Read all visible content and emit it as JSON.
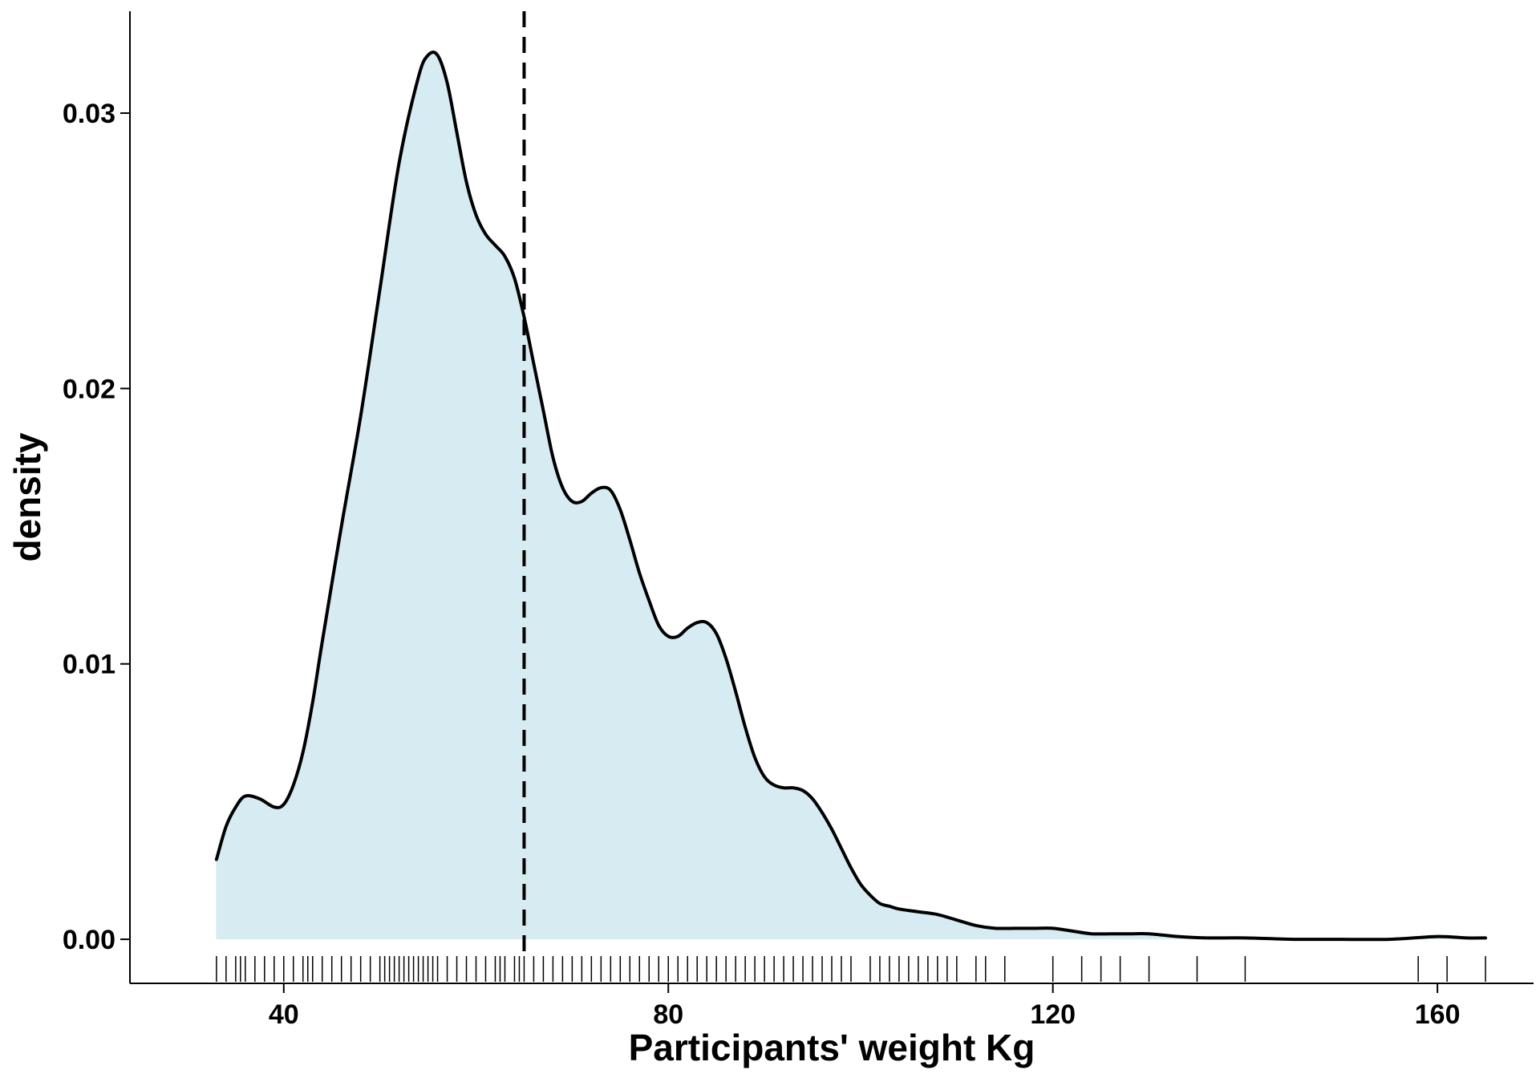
{
  "chart_data": {
    "type": "area",
    "title": "",
    "xlabel": "Participants' weight Kg",
    "ylabel": "density",
    "xlim": [
      24,
      170
    ],
    "ylim": [
      -0.0016,
      0.0337
    ],
    "x_ticks": [
      40,
      80,
      120,
      160
    ],
    "y_ticks": [
      0.0,
      0.01,
      0.02,
      0.03
    ],
    "x_tick_labels": [
      "40",
      "80",
      "120",
      "160"
    ],
    "y_tick_labels": [
      "0.00",
      "0.01",
      "0.02",
      "0.03"
    ],
    "grid": false,
    "legend": "none",
    "fill_color": "#d6ebf2",
    "line_color": "#000000",
    "mean_line_x": 65.0,
    "series": [
      {
        "x": [
          33,
          34,
          35,
          36,
          37.5,
          39,
          40,
          41,
          42,
          43,
          44,
          46,
          48,
          50,
          52,
          54,
          55,
          56,
          57,
          58,
          59,
          60,
          61,
          62,
          63,
          64,
          65,
          66,
          67,
          68,
          69,
          70,
          71,
          72,
          73,
          74,
          75,
          76,
          77,
          78,
          79,
          80,
          81,
          82,
          83,
          84,
          85,
          86,
          87,
          88,
          89,
          90,
          91,
          92,
          93,
          94,
          95,
          96,
          97,
          98,
          99,
          100,
          101,
          102,
          103,
          104,
          106,
          108,
          110,
          112,
          114,
          116,
          118,
          120,
          122,
          124,
          126,
          128,
          130,
          133,
          136,
          140,
          145,
          150,
          155,
          160,
          163,
          165
        ],
        "y": [
          0.0029,
          0.0041,
          0.0048,
          0.0052,
          0.0051,
          0.0048,
          0.0049,
          0.0056,
          0.0068,
          0.0086,
          0.0108,
          0.015,
          0.019,
          0.0236,
          0.0282,
          0.0313,
          0.0321,
          0.0321,
          0.0311,
          0.0293,
          0.0275,
          0.0263,
          0.0256,
          0.0252,
          0.0248,
          0.024,
          0.0226,
          0.0209,
          0.0192,
          0.0175,
          0.0164,
          0.0159,
          0.0159,
          0.0162,
          0.0164,
          0.0163,
          0.0156,
          0.0145,
          0.0133,
          0.0123,
          0.0114,
          0.011,
          0.011,
          0.0113,
          0.0115,
          0.0115,
          0.0111,
          0.0102,
          0.009,
          0.0077,
          0.0066,
          0.0059,
          0.0056,
          0.0055,
          0.0055,
          0.0054,
          0.0051,
          0.0046,
          0.004,
          0.0033,
          0.0026,
          0.002,
          0.0016,
          0.0013,
          0.0012,
          0.0011,
          0.001,
          0.0009,
          0.0007,
          0.0005,
          0.0004,
          0.0004,
          0.0004,
          0.0004,
          0.0003,
          0.0002,
          0.0002,
          0.0002,
          0.0002,
          0.0001,
          5e-05,
          5e-05,
          0.0,
          0.0,
          0.0,
          0.0001,
          5e-05,
          5e-05
        ]
      }
    ],
    "rug_x": [
      33,
      34,
      35,
      35.5,
      36,
      37,
      38,
      39,
      40,
      41,
      42,
      42.5,
      43,
      44,
      45,
      46,
      47,
      48,
      49,
      50,
      50.5,
      51,
      51.5,
      52,
      52.5,
      53,
      53.5,
      54,
      54.5,
      55,
      55.5,
      56,
      57,
      58,
      59,
      60,
      61,
      62,
      62.5,
      63,
      64,
      64.5,
      65,
      66,
      67,
      68,
      69,
      70,
      71,
      72,
      73,
      74,
      75,
      76,
      77,
      78,
      79,
      80,
      81,
      82,
      83,
      84,
      85,
      86,
      87,
      88,
      89,
      90,
      91,
      92,
      93,
      94,
      95,
      96,
      97,
      98,
      99,
      101,
      102,
      103,
      104,
      105,
      106,
      107,
      108,
      109,
      110,
      112,
      113,
      115,
      120,
      123,
      125,
      127,
      130,
      135,
      140,
      158,
      161,
      165
    ]
  }
}
